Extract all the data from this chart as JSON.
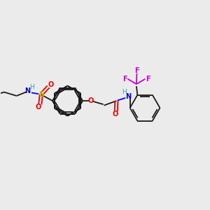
{
  "background_color": "#ebebeb",
  "colors": {
    "C": "#1a1a1a",
    "N": "#0000ee",
    "O": "#ee0000",
    "S": "#bbbb00",
    "F": "#cc00cc",
    "H": "#5090a0",
    "bond": "#1a1a1a"
  },
  "lw": 1.3,
  "fs": 7.0
}
